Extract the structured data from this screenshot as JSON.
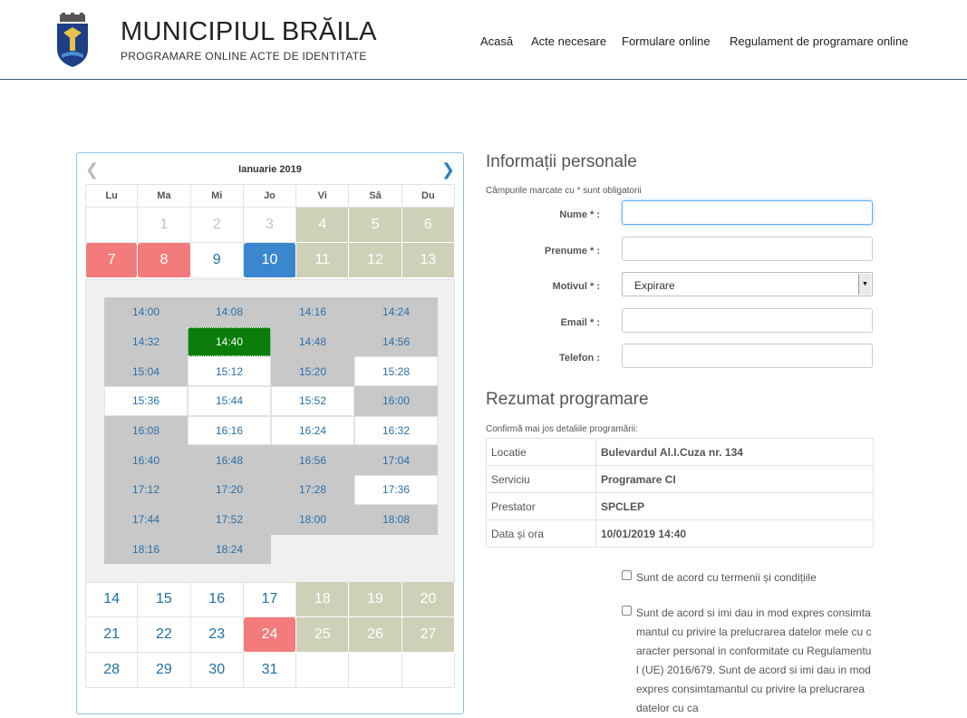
{
  "header": {
    "title": "MUNICIPIUL BRĂILA",
    "subtitle": "PROGRAMARE ONLINE ACTE DE IDENTITATE",
    "nav": [
      "Acasă",
      "Acte necesare",
      "Formulare online",
      "Regulament de programare online"
    ]
  },
  "calendar": {
    "month": "Ianuarie 2019",
    "weekdays": [
      "Lu",
      "Ma",
      "Mi",
      "Jo",
      "Vi",
      "Sâ",
      "Du"
    ],
    "week1": [
      "",
      "1",
      "2",
      "3",
      "4",
      "5",
      "6"
    ],
    "week2": [
      "7",
      "8",
      "9",
      "10",
      "11",
      "12",
      "13"
    ],
    "week3": [
      "14",
      "15",
      "16",
      "17",
      "18",
      "19",
      "20"
    ],
    "week4": [
      "21",
      "22",
      "23",
      "24",
      "25",
      "26",
      "27"
    ],
    "week5": [
      "28",
      "29",
      "30",
      "31",
      "",
      "",
      ""
    ],
    "slots": [
      "14:00",
      "14:08",
      "14:16",
      "14:24",
      "14:32",
      "14:40",
      "14:48",
      "14:56",
      "15:04",
      "15:12",
      "15:20",
      "15:28",
      "15:36",
      "15:44",
      "15:52",
      "16:00",
      "16:08",
      "16:16",
      "16:24",
      "16:32",
      "16:40",
      "16:48",
      "16:56",
      "17:04",
      "17:12",
      "17:20",
      "17:28",
      "17:36",
      "17:44",
      "17:52",
      "18:00",
      "18:08",
      "18:16",
      "18:24"
    ],
    "free_slots": [
      "15:12",
      "15:28",
      "15:36",
      "15:44",
      "15:52",
      "16:16",
      "16:24",
      "16:32",
      "17:36"
    ],
    "selected_slot": "14:40",
    "selected_day": "10",
    "colors": {
      "selected_day": "#3a87cf",
      "unavailable_day": "#f47b7b",
      "weekend": "#cfd0b8",
      "selected_slot": "#0a7d0a",
      "busy_slot": "#c8c8c8"
    }
  },
  "form": {
    "title": "Informații personale",
    "note": "Câmpurile marcate cu * sunt obligatorii",
    "labels": {
      "nume": "Nume * :",
      "prenume": "Prenume * :",
      "motivul": "Motivul * :",
      "email": "Email * :",
      "telefon": "Telefon :"
    },
    "values": {
      "nume": "",
      "prenume": "",
      "motivul": "Expirare",
      "email": "",
      "telefon": ""
    }
  },
  "summary": {
    "title": "Rezumat programare",
    "note": "Confirmă mai jos detaliile programării:",
    "rows": [
      {
        "k": "Locatie",
        "v": "Bulevardul Al.I.Cuza nr. 134"
      },
      {
        "k": "Serviciu",
        "v": "Programare CI"
      },
      {
        "k": "Prestator",
        "v": "SPCLEP"
      },
      {
        "k": "Data și ora",
        "v": "10/01/2019 14:40"
      }
    ]
  },
  "agreements": {
    "terms": "Sunt de acord cu termenii și condițiile",
    "consent": "Sunt de acord si imi dau in mod expres consimtamantul cu privire la prelucrarea datelor mele cu caracter personal in conformitate cu Regulamentul (UE) 2016/679. Sunt de acord si imi dau in mod expres consimtamantul cu privire la prelucrarea datelor cu ca"
  }
}
